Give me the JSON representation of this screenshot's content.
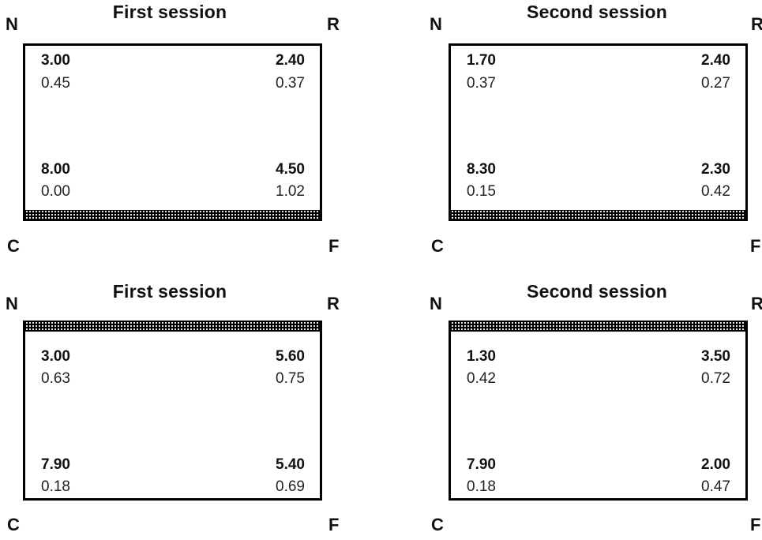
{
  "panels": [
    {
      "title": "First session",
      "barrier": "bottom",
      "corners": {
        "top_left": "N",
        "top_right": "R",
        "bottom_left": "C",
        "bottom_right": "F"
      },
      "cells": {
        "N": {
          "mean": "3.00",
          "se": "0.45"
        },
        "R": {
          "mean": "2.40",
          "se": "0.37"
        },
        "C": {
          "mean": "8.00",
          "se": "0.00"
        },
        "F": {
          "mean": "4.50",
          "se": "1.02"
        }
      }
    },
    {
      "title": "Second session",
      "barrier": "bottom",
      "corners": {
        "top_left": "N",
        "top_right": "R",
        "bottom_left": "C",
        "bottom_right": "F"
      },
      "cells": {
        "N": {
          "mean": "1.70",
          "se": "0.37"
        },
        "R": {
          "mean": "2.40",
          "se": "0.27"
        },
        "C": {
          "mean": "8.30",
          "se": "0.15"
        },
        "F": {
          "mean": "2.30",
          "se": "0.42"
        }
      }
    },
    {
      "title": "First session",
      "barrier": "top",
      "corners": {
        "top_left": "N",
        "top_right": "R",
        "bottom_left": "C",
        "bottom_right": "F"
      },
      "cells": {
        "N": {
          "mean": "3.00",
          "se": "0.63"
        },
        "R": {
          "mean": "5.60",
          "se": "0.75"
        },
        "C": {
          "mean": "7.90",
          "se": "0.18"
        },
        "F": {
          "mean": "5.40",
          "se": "0.69"
        }
      }
    },
    {
      "title": "Second session",
      "barrier": "top",
      "corners": {
        "top_left": "N",
        "top_right": "R",
        "bottom_left": "C",
        "bottom_right": "F"
      },
      "cells": {
        "N": {
          "mean": "1.30",
          "se": "0.42"
        },
        "R": {
          "mean": "3.50",
          "se": "0.72"
        },
        "C": {
          "mean": "7.90",
          "se": "0.18"
        },
        "F": {
          "mean": "2.00",
          "se": "0.47"
        }
      }
    }
  ]
}
